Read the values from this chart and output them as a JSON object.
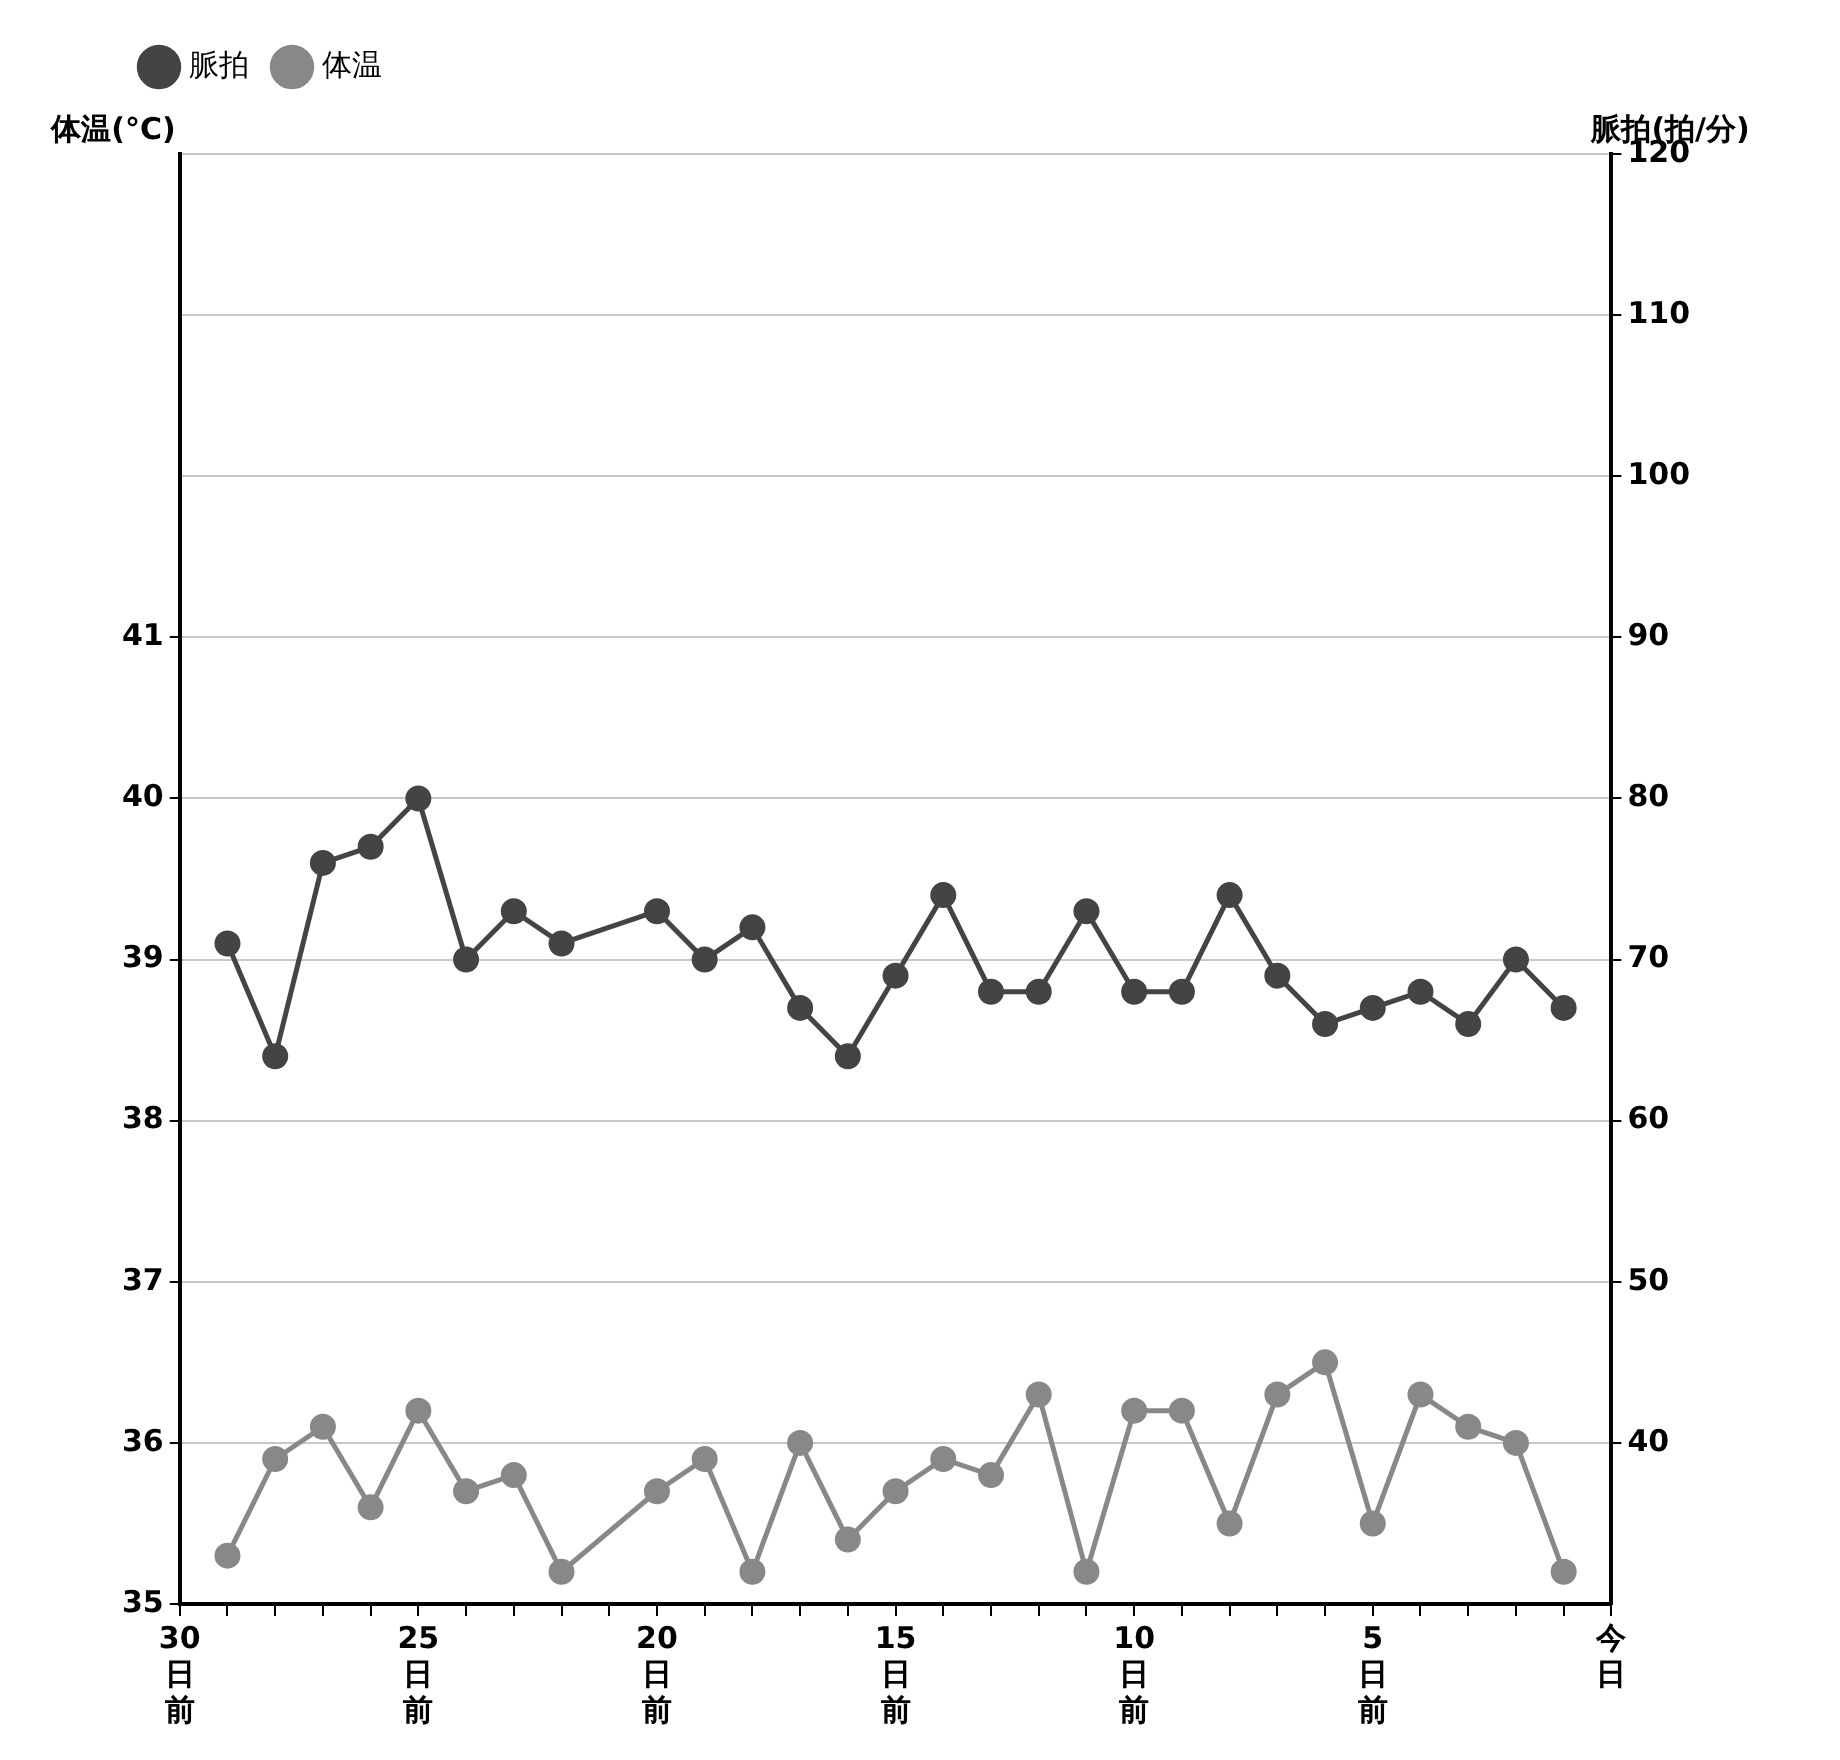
{
  "chart_data": {
    "type": "line",
    "ylabel": "体温(°C)",
    "y2label": "脈拍(拍/分)",
    "x": [
      29,
      28,
      27,
      26,
      25,
      24,
      23,
      22,
      21,
      20,
      19,
      18,
      17,
      16,
      15,
      14,
      13,
      12,
      11,
      10,
      9,
      8,
      7,
      6,
      5,
      4,
      3,
      2,
      1
    ],
    "xlim": [
      30,
      0
    ],
    "xticks": [
      {
        "value": 30,
        "label": "30日前"
      },
      {
        "value": 29,
        "label": null
      },
      {
        "value": 28,
        "label": null
      },
      {
        "value": 27,
        "label": null
      },
      {
        "value": 26,
        "label": null
      },
      {
        "value": 25,
        "label": "25日前"
      },
      {
        "value": 24,
        "label": null
      },
      {
        "value": 23,
        "label": null
      },
      {
        "value": 22,
        "label": null
      },
      {
        "value": 21,
        "label": null
      },
      {
        "value": 20,
        "label": "20日前"
      },
      {
        "value": 19,
        "label": null
      },
      {
        "value": 18,
        "label": null
      },
      {
        "value": 17,
        "label": null
      },
      {
        "value": 16,
        "label": null
      },
      {
        "value": 15,
        "label": "15日前"
      },
      {
        "value": 14,
        "label": null
      },
      {
        "value": 13,
        "label": null
      },
      {
        "value": 12,
        "label": null
      },
      {
        "value": 11,
        "label": null
      },
      {
        "value": 10,
        "label": "10日前"
      },
      {
        "value": 9,
        "label": null
      },
      {
        "value": 8,
        "label": null
      },
      {
        "value": 7,
        "label": null
      },
      {
        "value": 6,
        "label": null
      },
      {
        "value": 5,
        "label": "5日前"
      },
      {
        "value": 4,
        "label": null
      },
      {
        "value": 3,
        "label": null
      },
      {
        "value": 2,
        "label": null
      },
      {
        "value": 1,
        "label": null
      },
      {
        "value": 0,
        "label": "今日"
      }
    ],
    "ylim": [
      35,
      44
    ],
    "yticks": [
      35,
      36,
      37,
      38,
      39,
      40,
      41
    ],
    "y2lim": [
      30,
      120
    ],
    "y2ticks": [
      40,
      50,
      60,
      70,
      80,
      90,
      100,
      110,
      120
    ],
    "grid": "y",
    "legend": "top left",
    "marker": "circle",
    "line_style": "solid",
    "series": [
      {
        "name": "脈拍",
        "color": "#444444",
        "axis": "y2",
        "values": [
          71,
          64,
          76,
          77,
          80,
          70,
          73,
          71,
          null,
          73,
          70,
          72,
          67,
          64,
          69,
          74,
          68,
          68,
          73,
          68,
          68,
          74,
          69,
          66,
          67,
          68,
          66,
          70,
          67
        ]
      },
      {
        "name": "体温",
        "color": "#888888",
        "axis": "y",
        "values": [
          35.3,
          35.9,
          36.1,
          35.6,
          36.2,
          35.7,
          35.8,
          35.2,
          null,
          35.7,
          35.9,
          35.2,
          36.0,
          35.4,
          35.7,
          35.9,
          35.8,
          36.3,
          35.2,
          36.2,
          36.2,
          35.5,
          36.3,
          36.5,
          35.5,
          36.3,
          36.1,
          36.0,
          35.2
        ]
      }
    ]
  }
}
